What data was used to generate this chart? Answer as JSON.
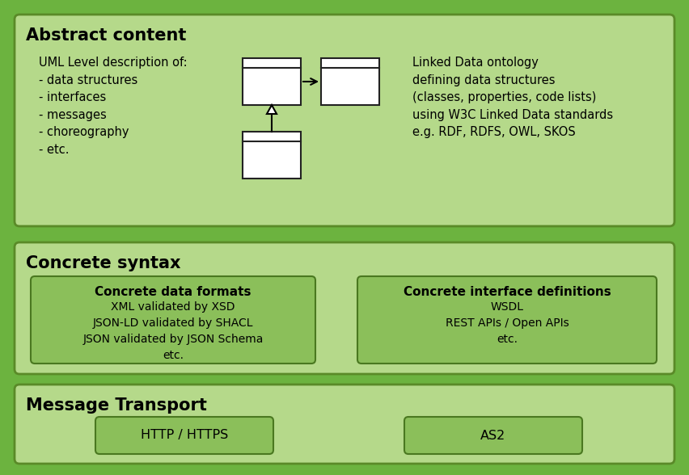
{
  "bg_color": "#6cb33f",
  "panel_light": "#b5d98a",
  "panel_border": "#5a8a28",
  "inner_box_bg": "#8bbf5a",
  "inner_box_border": "#4a7820",
  "uml_fill": "#ffffff",
  "uml_border": "#222222",
  "abstract_left_text": "UML Level description of:\n- data structures\n- interfaces\n- messages\n- choreography\n- etc.",
  "abstract_right_text": "Linked Data ontology\ndefining data structures\n(classes, properties, code lists)\nusing W3C Linked Data standards\ne.g. RDF, RDFS, OWL, SKOS",
  "syntax_box1_title": "Concrete data formats",
  "syntax_box1_text": "XML validated by XSD\nJSON-LD validated by SHACL\nJSON validated by JSON Schema\netc.",
  "syntax_box2_title": "Concrete interface definitions",
  "syntax_box2_text": "WSDL\nREST APIs / Open APIs\netc.",
  "transport_box1": "HTTP / HTTPS",
  "transport_box2": "AS2",
  "sec1_title": "Abstract content",
  "sec2_title": "Concrete syntax",
  "sec3_title": "Message Transport"
}
